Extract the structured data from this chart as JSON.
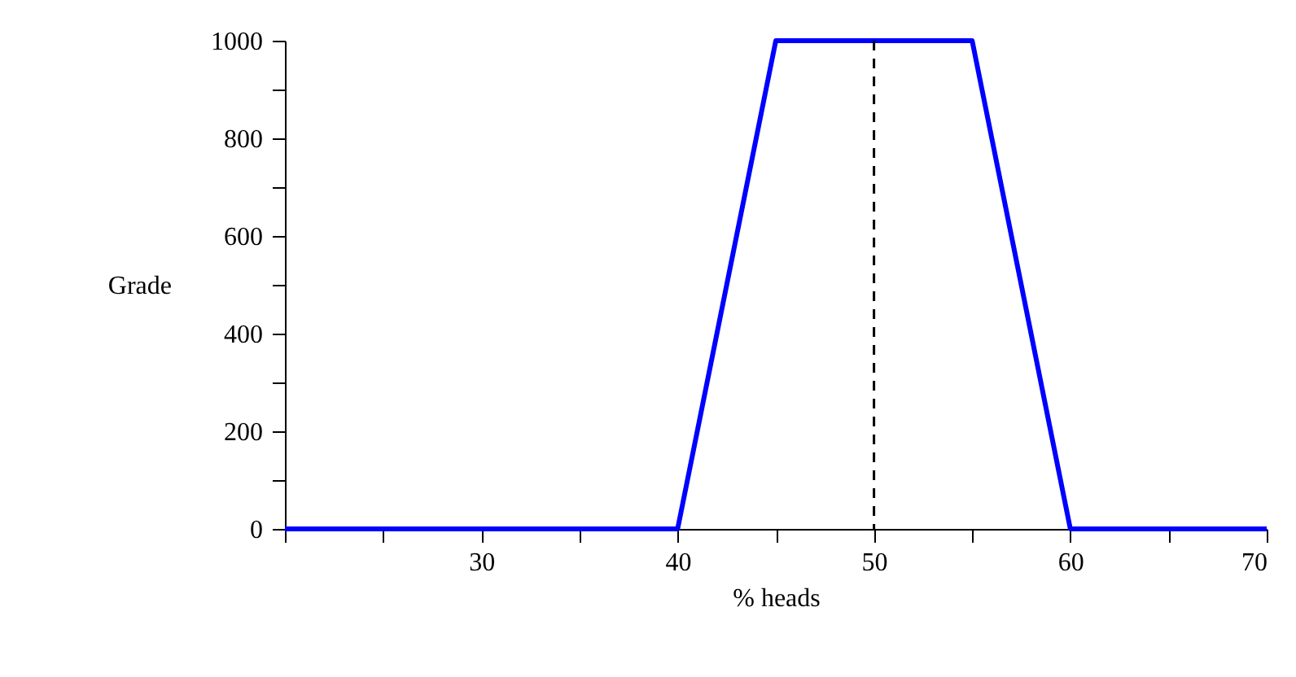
{
  "chart_data": {
    "type": "line",
    "xlabel": "% heads",
    "ylabel": "Grade",
    "x": [
      20,
      40,
      45,
      55,
      60,
      70
    ],
    "series": [
      {
        "color": "#0000ff",
        "values": [
          0,
          0,
          1000,
          1000,
          0,
          0
        ]
      }
    ],
    "xlim": [
      20,
      70
    ],
    "xticks": [
      {
        "value": 20,
        "label": null
      },
      {
        "value": 25,
        "label": null
      },
      30,
      {
        "value": 35,
        "label": null
      },
      40,
      {
        "value": 45,
        "label": null
      },
      50,
      {
        "value": 55,
        "label": null
      },
      60,
      {
        "value": 65,
        "label": null
      },
      70
    ],
    "ylim": [
      0,
      1000
    ],
    "yticks": [
      0,
      {
        "value": 100,
        "label": null
      },
      200,
      {
        "value": 300,
        "label": null
      },
      400,
      {
        "value": 500,
        "label": null
      },
      600,
      {
        "value": 700,
        "label": null
      },
      800,
      {
        "value": 900,
        "label": null
      },
      1000
    ],
    "ref_lines": [
      {
        "axis": "x",
        "value": 50,
        "color": "#000000",
        "line_style": "dashed"
      }
    ],
    "grid": false
  }
}
